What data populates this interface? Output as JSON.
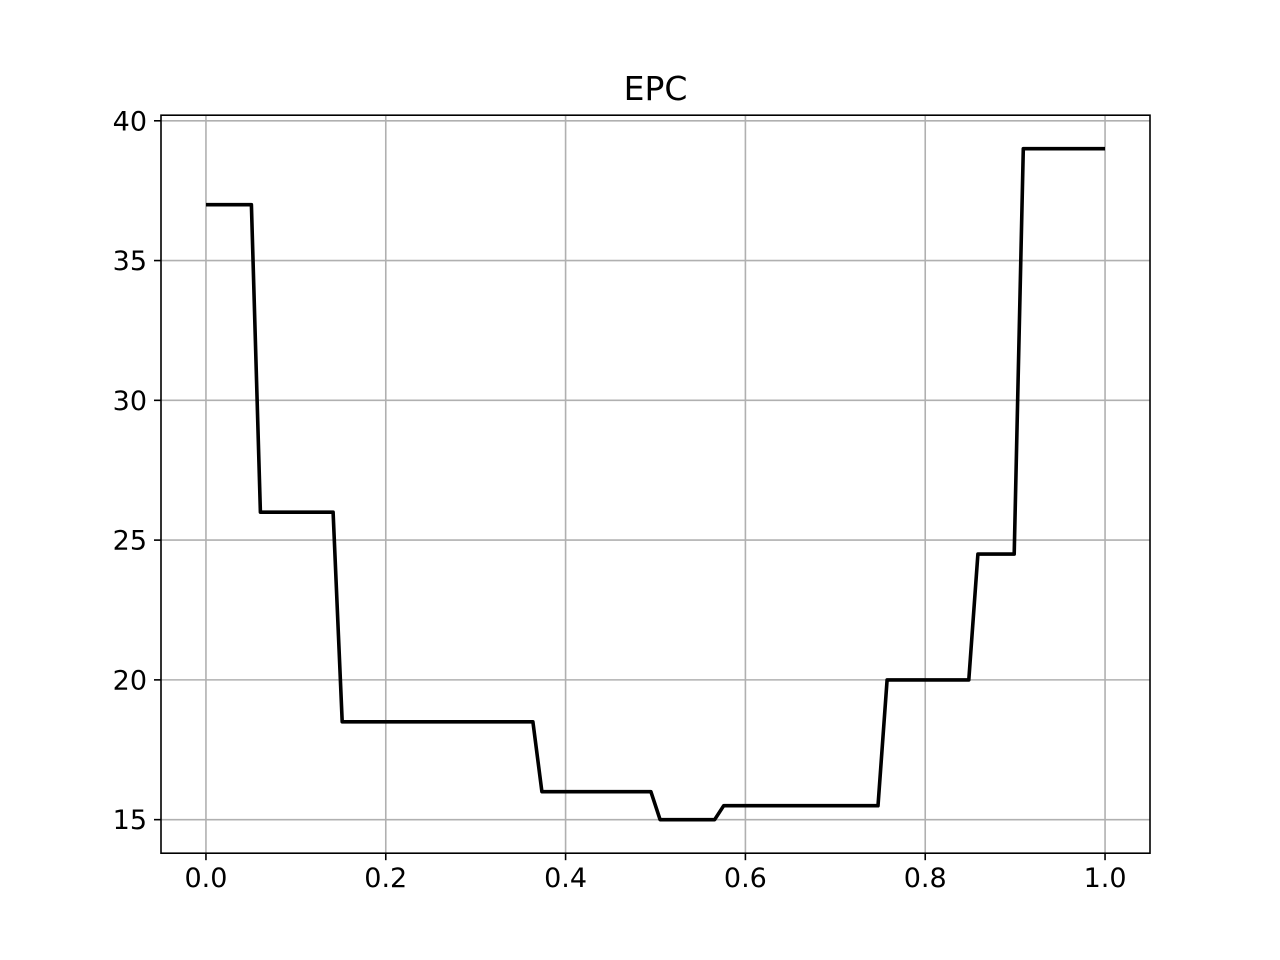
{
  "figure": {
    "background": "#ffffff"
  },
  "chart_data": {
    "type": "line",
    "title": "EPC",
    "xlabel": "",
    "ylabel": "",
    "grid": true,
    "grid_color": "#b0b0b0",
    "line_color": "#000000",
    "spine_color": "#000000",
    "legend_position": "none",
    "xlim": [
      -0.05,
      1.05
    ],
    "ylim": [
      13.8,
      40.2
    ],
    "xticks": {
      "values": [
        0.0,
        0.2,
        0.4,
        0.6,
        0.8,
        1.0
      ],
      "labels": [
        "0.0",
        "0.2",
        "0.4",
        "0.6",
        "0.8",
        "1.0"
      ]
    },
    "yticks": {
      "values": [
        15,
        20,
        25,
        30,
        35,
        40
      ],
      "labels": [
        "15",
        "20",
        "25",
        "30",
        "35",
        "40"
      ]
    },
    "series": [
      {
        "name": "EPC",
        "x": [
          0.0,
          0.0505,
          0.0606,
          0.1414,
          0.1515,
          0.3636,
          0.3737,
          0.4949,
          0.5051,
          0.5657,
          0.5758,
          0.7475,
          0.7576,
          0.8485,
          0.8586,
          0.899,
          0.9091,
          1.0
        ],
        "y": [
          37,
          37,
          26,
          26,
          18.5,
          18.5,
          16,
          16,
          15,
          15,
          15.5,
          15.5,
          20,
          20,
          24.5,
          24.5,
          39,
          39
        ]
      }
    ]
  }
}
